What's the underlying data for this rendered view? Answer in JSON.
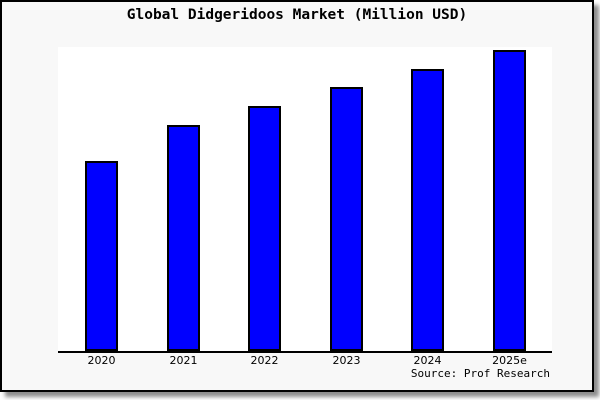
{
  "window": {
    "background": "#ffffff"
  },
  "card": {
    "background": "#f8f8f8",
    "border_color": "#000000",
    "shadow_color": "#737373"
  },
  "chart_data": {
    "type": "bar",
    "title": "Global Didgeridoos Market (Million USD)",
    "xlabel": "",
    "ylabel": "",
    "categories": [
      "2020",
      "2021",
      "2022",
      "2023",
      "2024",
      "2025e"
    ],
    "values": [
      62.5,
      74.3,
      80.6,
      86.8,
      92.8,
      99.0
    ],
    "ylim": [
      0,
      100
    ],
    "grid": false,
    "legend": "none",
    "bar_color": "#0000ff",
    "bar_border_color": "#000000",
    "axis_color": "#000000",
    "plot_background": "#ffffff",
    "source_label": "Source: Prof Research"
  }
}
